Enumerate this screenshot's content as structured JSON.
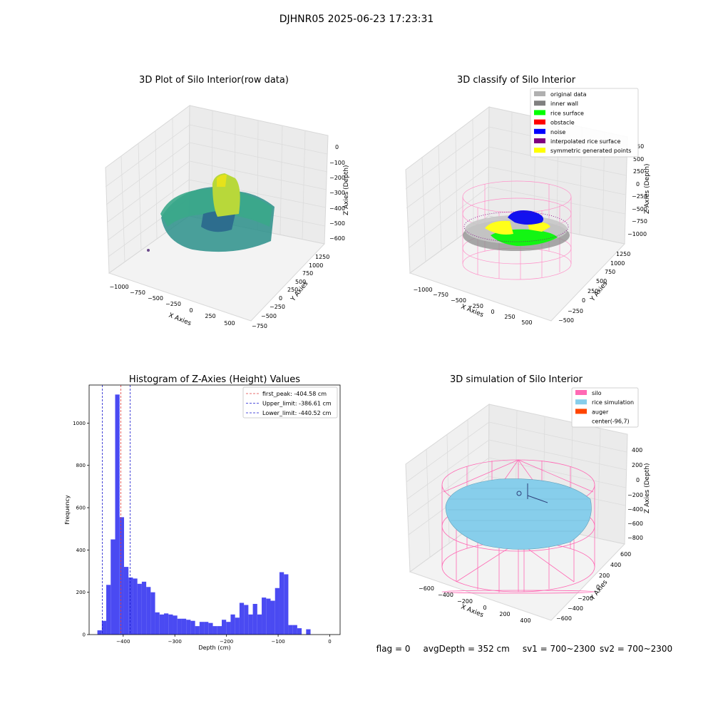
{
  "suptitle": "DJHNR05 2025-06-23 17:23:31",
  "status": {
    "flag": "flag = 0",
    "avg_depth": "avgDepth = 352 cm",
    "sv1": "sv1 = 700~2300",
    "sv2": "sv2 = 700~2300"
  },
  "colors": {
    "histogram_bar": "#4a4af2",
    "peak_line": "#e04040",
    "limit_line": "#1a1ad0",
    "silo": "#ff69b4",
    "rice_simulation": "#87ceeb",
    "auger": "#ff4500",
    "original_data": "#b0b0b0",
    "inner_wall": "#808080",
    "rice_surface": "#00ff00",
    "obstacle": "#ff0000",
    "noise": "#0000ff",
    "interpolated_rice_surface": "#800080",
    "symmetric_generated_points": "#ffff00"
  },
  "panel_raw": {
    "title": "3D Plot of Silo Interior(row data)",
    "xlabel": "X Axies",
    "ylabel": "Y Axies",
    "zlabel": "Z Axies (Depth)",
    "xticks": [
      "−1000",
      "−750",
      "−500",
      "−250",
      "0",
      "250",
      "500"
    ],
    "yticks": [
      "−750",
      "−500",
      "−250",
      "0",
      "250",
      "500",
      "750",
      "1000",
      "1250"
    ],
    "zticks": [
      "−600",
      "−500",
      "−400",
      "−300",
      "−200",
      "−100",
      "0"
    ]
  },
  "panel_classify": {
    "title": "3D classify of Silo Interior",
    "xlabel": "X Axies",
    "ylabel": "Y Axies",
    "zlabel": "Z Axies (Depth)",
    "xticks": [
      "−1000",
      "−750",
      "−500",
      "−250",
      "0",
      "250",
      "500"
    ],
    "yticks": [
      "−500",
      "−250",
      "0",
      "250",
      "500",
      "750",
      "1000",
      "1250"
    ],
    "zticks": [
      "−1000",
      "−750",
      "−500",
      "−250",
      "0",
      "250",
      "500"
    ],
    "zticks_partial": "50",
    "legend": [
      {
        "label": "original data",
        "color": "#b0b0b0"
      },
      {
        "label": "inner wall",
        "color": "#808080"
      },
      {
        "label": "rice surface",
        "color": "#00ff00"
      },
      {
        "label": "obstacle",
        "color": "#ff0000"
      },
      {
        "label": "noise",
        "color": "#0000ff"
      },
      {
        "label": "interpolated rice surface",
        "color": "#800080"
      },
      {
        "label": "symmetric generated points",
        "color": "#ffff00"
      }
    ]
  },
  "panel_sim": {
    "title": "3D simulation of Silo Interior",
    "xlabel": "X Axies",
    "ylabel": "Y Axies",
    "zlabel": "Z Axies (Depth)",
    "xticks": [
      "−600",
      "−400",
      "−200",
      "0",
      "200",
      "400"
    ],
    "yticks": [
      "−600",
      "−400",
      "−200",
      "0",
      "200",
      "400",
      "600"
    ],
    "zticks": [
      "−800",
      "−600",
      "−400",
      "−200",
      "0",
      "200",
      "400"
    ],
    "legend": [
      {
        "label": "silo",
        "color": "#ff69b4"
      },
      {
        "label": "rice simulation",
        "color": "#87ceeb"
      },
      {
        "label": "auger",
        "color": "#ff4500"
      },
      {
        "label": "center(-96,7)",
        "color": ""
      }
    ]
  },
  "chart_data": {
    "type": "bar",
    "title": "Histogram of Z-Axies (Height) Values",
    "xlabel": "Depth (cm)",
    "ylabel": "Frequency",
    "xlim": [
      -466,
      20
    ],
    "ylim": [
      0,
      1180
    ],
    "xticks": [
      -400,
      -300,
      -200,
      -100,
      0
    ],
    "xtick_labels": [
      "−400",
      "−300",
      "−200",
      "−100",
      "0"
    ],
    "yticks": [
      0,
      200,
      400,
      600,
      800,
      1000
    ],
    "bin_start": -450,
    "bin_width": 8.6,
    "values": [
      20,
      65,
      235,
      450,
      1135,
      555,
      320,
      270,
      265,
      240,
      250,
      225,
      200,
      105,
      95,
      100,
      95,
      90,
      75,
      75,
      70,
      65,
      40,
      60,
      60,
      55,
      40,
      40,
      70,
      60,
      95,
      80,
      150,
      140,
      95,
      145,
      95,
      175,
      170,
      160,
      220,
      295,
      285,
      45,
      45,
      30,
      0,
      25
    ],
    "reference_lines": [
      {
        "label": "first_peak: -404.58 cm",
        "value": -404.58,
        "style": "peak"
      },
      {
        "label": "Upper_limit: -386.61 cm",
        "value": -386.61,
        "style": "limit"
      },
      {
        "label": "Lower_limit: -440.52 cm",
        "value": -440.52,
        "style": "limit"
      }
    ],
    "legend_position": "upper right",
    "grid": false
  }
}
